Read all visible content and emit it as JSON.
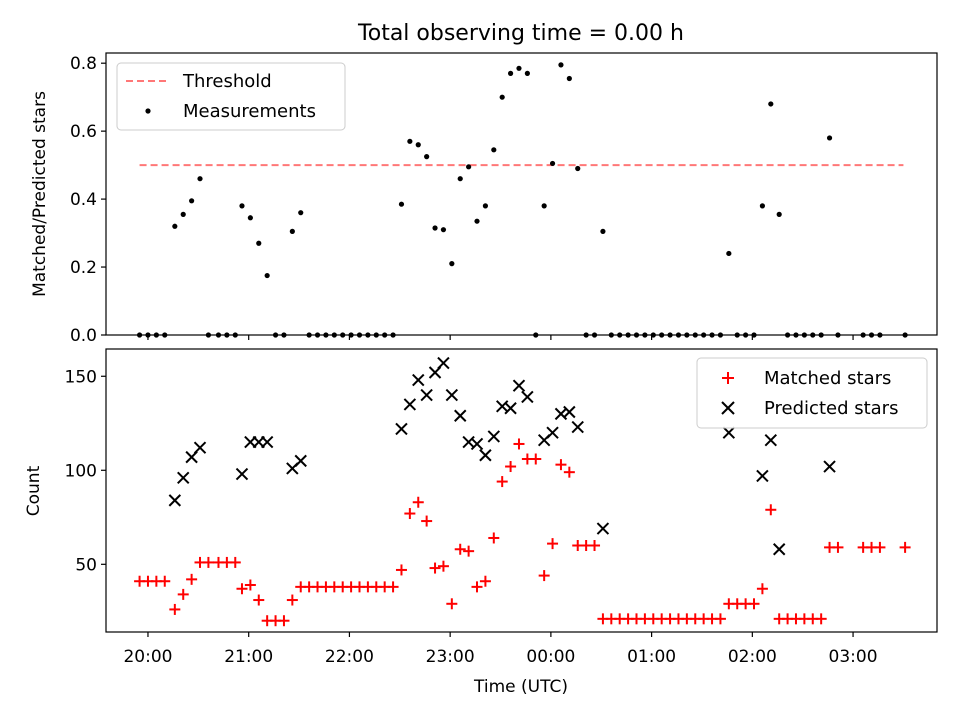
{
  "title": "Total observing time = 0.00 h",
  "chart_data": [
    {
      "type": "scatter",
      "ylabel": "Matched/Predicted stars",
      "ylim": [
        0,
        0.83
      ],
      "yticks": [
        0.0,
        0.2,
        0.4,
        0.6,
        0.8
      ],
      "ytick_labels": [
        "0.0",
        "0.2",
        "0.4",
        "0.6",
        "0.8"
      ],
      "legend": {
        "placement": "upper-left",
        "entries": [
          "Threshold",
          "Measurements"
        ]
      },
      "threshold": {
        "name": "Threshold",
        "value": 0.5,
        "x_start": "19:55",
        "x_end": "03:30",
        "color": "#ff7777"
      },
      "series": [
        {
          "name": "Measurements",
          "color": "#000000",
          "points": [
            [
              "19:55",
              0
            ],
            [
              "20:00",
              0
            ],
            [
              "20:05",
              0
            ],
            [
              "20:10",
              0
            ],
            [
              "20:16",
              0.32
            ],
            [
              "20:21",
              0.355
            ],
            [
              "20:26",
              0.395
            ],
            [
              "20:31",
              0.46
            ],
            [
              "20:36",
              0
            ],
            [
              "20:42",
              0
            ],
            [
              "20:47",
              0
            ],
            [
              "20:52",
              0
            ],
            [
              "20:56",
              0.38
            ],
            [
              "21:01",
              0.345
            ],
            [
              "21:06",
              0.27
            ],
            [
              "21:11",
              0.175
            ],
            [
              "21:16",
              0
            ],
            [
              "21:21",
              0
            ],
            [
              "21:26",
              0.305
            ],
            [
              "21:31",
              0.36
            ],
            [
              "21:36",
              0
            ],
            [
              "21:41",
              0
            ],
            [
              "21:46",
              0
            ],
            [
              "21:51",
              0
            ],
            [
              "21:56",
              0
            ],
            [
              "22:01",
              0
            ],
            [
              "22:06",
              0
            ],
            [
              "22:11",
              0
            ],
            [
              "22:16",
              0
            ],
            [
              "22:21",
              0
            ],
            [
              "22:26",
              0
            ],
            [
              "22:31",
              0.385
            ],
            [
              "22:36",
              0.57
            ],
            [
              "22:41",
              0.56
            ],
            [
              "22:46",
              0.525
            ],
            [
              "22:51",
              0.315
            ],
            [
              "22:56",
              0.31
            ],
            [
              "23:01",
              0.21
            ],
            [
              "23:06",
              0.46
            ],
            [
              "23:11",
              0.495
            ],
            [
              "23:16",
              0.335
            ],
            [
              "23:21",
              0.38
            ],
            [
              "23:26",
              0.545
            ],
            [
              "23:31",
              0.7
            ],
            [
              "23:36",
              0.77
            ],
            [
              "23:41",
              0.785
            ],
            [
              "23:46",
              0.77
            ],
            [
              "23:51",
              0
            ],
            [
              "23:56",
              0.38
            ],
            [
              "00:01",
              0.505
            ],
            [
              "00:06",
              0.795
            ],
            [
              "00:11",
              0.755
            ],
            [
              "00:16",
              0.49
            ],
            [
              "00:21",
              0
            ],
            [
              "00:26",
              0
            ],
            [
              "00:31",
              0.305
            ],
            [
              "00:36",
              0
            ],
            [
              "00:41",
              0
            ],
            [
              "00:46",
              0
            ],
            [
              "00:51",
              0
            ],
            [
              "00:56",
              0
            ],
            [
              "01:01",
              0
            ],
            [
              "01:06",
              0
            ],
            [
              "01:11",
              0
            ],
            [
              "01:16",
              0
            ],
            [
              "01:21",
              0
            ],
            [
              "01:26",
              0
            ],
            [
              "01:31",
              0
            ],
            [
              "01:36",
              0
            ],
            [
              "01:41",
              0
            ],
            [
              "01:46",
              0.24
            ],
            [
              "01:51",
              0
            ],
            [
              "01:56",
              0
            ],
            [
              "02:01",
              0
            ],
            [
              "02:06",
              0.38
            ],
            [
              "02:11",
              0.68
            ],
            [
              "02:16",
              0.355
            ],
            [
              "02:21",
              0
            ],
            [
              "02:26",
              0
            ],
            [
              "02:31",
              0
            ],
            [
              "02:36",
              0
            ],
            [
              "02:41",
              0
            ],
            [
              "02:46",
              0.58
            ],
            [
              "02:51",
              0
            ],
            [
              "03:06",
              0
            ],
            [
              "03:11",
              0
            ],
            [
              "03:16",
              0
            ],
            [
              "03:31",
              0
            ]
          ]
        }
      ]
    },
    {
      "type": "scatter",
      "xlabel": "Time (UTC)",
      "ylabel": "Count",
      "ylim": [
        14,
        164.5
      ],
      "yticks": [
        50,
        100,
        150
      ],
      "ytick_labels": [
        "50",
        "100",
        "150"
      ],
      "xlim": [
        "19:35",
        "03:50"
      ],
      "xticks": [
        "20:00",
        "21:00",
        "22:00",
        "23:00",
        "00:00",
        "01:00",
        "02:00",
        "03:00"
      ],
      "legend": {
        "placement": "upper-right",
        "entries": [
          "Matched stars",
          "Predicted stars"
        ]
      },
      "series": [
        {
          "name": "Matched stars",
          "marker": "plus",
          "color": "#ff0000",
          "points": [
            [
              "19:55",
              41
            ],
            [
              "20:00",
              41
            ],
            [
              "20:05",
              41
            ],
            [
              "20:10",
              41
            ],
            [
              "20:16",
              26
            ],
            [
              "20:21",
              34
            ],
            [
              "20:26",
              42
            ],
            [
              "20:31",
              51
            ],
            [
              "20:36",
              51
            ],
            [
              "20:42",
              51
            ],
            [
              "20:47",
              51
            ],
            [
              "20:52",
              51
            ],
            [
              "20:56",
              37
            ],
            [
              "21:01",
              39
            ],
            [
              "21:06",
              31
            ],
            [
              "21:11",
              20
            ],
            [
              "21:16",
              20
            ],
            [
              "21:21",
              20
            ],
            [
              "21:26",
              31
            ],
            [
              "21:31",
              38
            ],
            [
              "21:36",
              38
            ],
            [
              "21:41",
              38
            ],
            [
              "21:46",
              38
            ],
            [
              "21:51",
              38
            ],
            [
              "21:56",
              38
            ],
            [
              "22:01",
              38
            ],
            [
              "22:06",
              38
            ],
            [
              "22:11",
              38
            ],
            [
              "22:16",
              38
            ],
            [
              "22:21",
              38
            ],
            [
              "22:26",
              38
            ],
            [
              "22:31",
              47
            ],
            [
              "22:36",
              77
            ],
            [
              "22:41",
              83
            ],
            [
              "22:46",
              73
            ],
            [
              "22:51",
              48
            ],
            [
              "22:56",
              49
            ],
            [
              "23:01",
              29
            ],
            [
              "23:06",
              58
            ],
            [
              "23:11",
              57
            ],
            [
              "23:16",
              38
            ],
            [
              "23:21",
              41
            ],
            [
              "23:26",
              64
            ],
            [
              "23:31",
              94
            ],
            [
              "23:36",
              102
            ],
            [
              "23:41",
              114
            ],
            [
              "23:46",
              106
            ],
            [
              "23:51",
              106
            ],
            [
              "23:56",
              44
            ],
            [
              "00:01",
              61
            ],
            [
              "00:06",
              103
            ],
            [
              "00:11",
              99
            ],
            [
              "00:16",
              60
            ],
            [
              "00:21",
              60
            ],
            [
              "00:26",
              60
            ],
            [
              "00:31",
              21
            ],
            [
              "00:36",
              21
            ],
            [
              "00:41",
              21
            ],
            [
              "00:46",
              21
            ],
            [
              "00:51",
              21
            ],
            [
              "00:56",
              21
            ],
            [
              "01:01",
              21
            ],
            [
              "01:06",
              21
            ],
            [
              "01:11",
              21
            ],
            [
              "01:16",
              21
            ],
            [
              "01:21",
              21
            ],
            [
              "01:26",
              21
            ],
            [
              "01:31",
              21
            ],
            [
              "01:36",
              21
            ],
            [
              "01:41",
              21
            ],
            [
              "01:46",
              29
            ],
            [
              "01:51",
              29
            ],
            [
              "01:56",
              29
            ],
            [
              "02:01",
              29
            ],
            [
              "02:06",
              37
            ],
            [
              "02:11",
              79
            ],
            [
              "02:16",
              21
            ],
            [
              "02:21",
              21
            ],
            [
              "02:26",
              21
            ],
            [
              "02:31",
              21
            ],
            [
              "02:36",
              21
            ],
            [
              "02:41",
              21
            ],
            [
              "02:46",
              59
            ],
            [
              "02:51",
              59
            ],
            [
              "03:06",
              59
            ],
            [
              "03:11",
              59
            ],
            [
              "03:16",
              59
            ],
            [
              "03:31",
              59
            ]
          ]
        },
        {
          "name": "Predicted stars",
          "marker": "x",
          "color": "#000000",
          "points": [
            [
              "20:16",
              84
            ],
            [
              "20:21",
              96
            ],
            [
              "20:26",
              107
            ],
            [
              "20:31",
              112
            ],
            [
              "20:56",
              98
            ],
            [
              "21:01",
              115
            ],
            [
              "21:06",
              115
            ],
            [
              "21:11",
              115
            ],
            [
              "21:26",
              101
            ],
            [
              "21:31",
              105
            ],
            [
              "22:31",
              122
            ],
            [
              "22:36",
              135
            ],
            [
              "22:41",
              148
            ],
            [
              "22:46",
              140
            ],
            [
              "22:51",
              152
            ],
            [
              "22:56",
              157
            ],
            [
              "23:01",
              140
            ],
            [
              "23:06",
              129
            ],
            [
              "23:11",
              115
            ],
            [
              "23:16",
              114
            ],
            [
              "23:21",
              108
            ],
            [
              "23:26",
              118
            ],
            [
              "23:31",
              134
            ],
            [
              "23:36",
              133
            ],
            [
              "23:41",
              145
            ],
            [
              "23:46",
              139
            ],
            [
              "23:56",
              116
            ],
            [
              "00:01",
              120
            ],
            [
              "00:06",
              130
            ],
            [
              "00:11",
              131
            ],
            [
              "00:16",
              123
            ],
            [
              "00:31",
              69
            ],
            [
              "01:46",
              120
            ],
            [
              "02:06",
              97
            ],
            [
              "02:11",
              116
            ],
            [
              "02:16",
              58
            ],
            [
              "02:46",
              102
            ]
          ]
        }
      ]
    }
  ]
}
